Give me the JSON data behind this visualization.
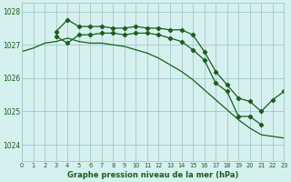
{
  "title": "Graphe pression niveau de la mer (hPa)",
  "bg_color": "#d6f0ef",
  "grid_color": "#a0c8c8",
  "line_color": "#1a5e1a",
  "series1": [
    1026.8,
    1026.9,
    1027.05,
    1027.1,
    1027.2,
    1027.1,
    1027.05,
    1027.05,
    1027.0,
    1026.95,
    1026.85,
    1026.75,
    1026.6,
    1026.4,
    1026.2,
    1025.95,
    1025.65,
    1025.35,
    1025.05,
    1024.75,
    1024.5,
    1024.3,
    1024.25,
    1024.2
  ],
  "series2": [
    null,
    null,
    null,
    1027.4,
    1027.75,
    1027.55,
    1027.55,
    1027.55,
    1027.5,
    1027.5,
    1027.55,
    1027.5,
    1027.5,
    1027.45,
    1027.45,
    1027.3,
    1026.8,
    1026.2,
    1025.8,
    1025.4,
    1025.3,
    1025.0,
    1025.35,
    1025.6
  ],
  "series3": [
    null,
    null,
    null,
    1027.25,
    1027.05,
    1027.3,
    1027.3,
    1027.35,
    1027.35,
    1027.3,
    1027.35,
    1027.35,
    1027.3,
    1027.2,
    1027.1,
    1026.85,
    1026.55,
    1025.85,
    1025.6,
    1024.85,
    1024.85,
    1024.6,
    null,
    null
  ],
  "xlim": [
    0,
    23
  ],
  "ylim": [
    1023.5,
    1028.25
  ],
  "yticks": [
    1024,
    1025,
    1026,
    1027,
    1028
  ],
  "xticks": [
    0,
    1,
    2,
    3,
    4,
    5,
    6,
    7,
    8,
    9,
    10,
    11,
    12,
    13,
    14,
    15,
    16,
    17,
    18,
    19,
    20,
    21,
    22,
    23
  ]
}
